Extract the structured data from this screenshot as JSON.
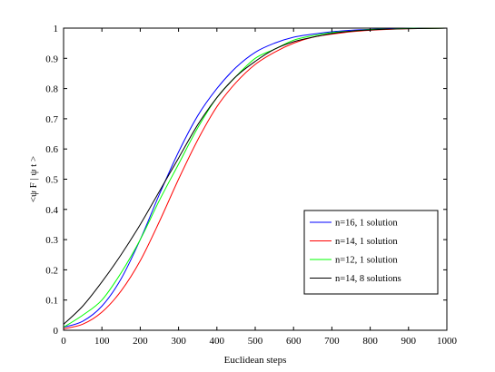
{
  "chart_data": {
    "type": "line",
    "xlabel": "Euclidean steps",
    "ylabel": "<ψ F | ψ t >",
    "xlim": [
      0,
      1000
    ],
    "ylim": [
      0,
      1
    ],
    "xticks": [
      0,
      100,
      200,
      300,
      400,
      500,
      600,
      700,
      800,
      900,
      1000
    ],
    "yticks": [
      0,
      0.1,
      0.2,
      0.3,
      0.4,
      0.5,
      0.6,
      0.7,
      0.8,
      0.9,
      1
    ],
    "grid": false,
    "legend_position": "lower-right",
    "x": [
      0,
      50,
      100,
      150,
      200,
      250,
      300,
      350,
      400,
      450,
      500,
      550,
      600,
      650,
      700,
      750,
      800,
      850,
      900,
      950,
      1000
    ],
    "series": [
      {
        "name": "n=16, 1 solution",
        "color": "#0000ff",
        "values": [
          0.01,
          0.03,
          0.08,
          0.17,
          0.3,
          0.45,
          0.59,
          0.71,
          0.8,
          0.87,
          0.92,
          0.95,
          0.97,
          0.98,
          0.988,
          0.993,
          0.996,
          0.998,
          0.999,
          0.999,
          1.0
        ]
      },
      {
        "name": "n=14, 1 solution",
        "color": "#ff0000",
        "values": [
          0.005,
          0.02,
          0.06,
          0.13,
          0.23,
          0.36,
          0.5,
          0.63,
          0.74,
          0.82,
          0.88,
          0.92,
          0.95,
          0.97,
          0.98,
          0.988,
          0.993,
          0.996,
          0.998,
          0.999,
          1.0
        ]
      },
      {
        "name": "n=12, 1 solution",
        "color": "#00ff00",
        "values": [
          0.01,
          0.05,
          0.1,
          0.19,
          0.3,
          0.43,
          0.55,
          0.67,
          0.77,
          0.84,
          0.9,
          0.93,
          0.96,
          0.975,
          0.985,
          0.99,
          0.995,
          0.997,
          0.999,
          0.999,
          1.0
        ]
      },
      {
        "name": "n=14, 8 solutions",
        "color": "#000000",
        "values": [
          0.02,
          0.08,
          0.16,
          0.25,
          0.35,
          0.46,
          0.57,
          0.68,
          0.77,
          0.84,
          0.89,
          0.93,
          0.955,
          0.97,
          0.982,
          0.99,
          0.994,
          0.997,
          0.998,
          0.999,
          1.0
        ]
      }
    ]
  }
}
